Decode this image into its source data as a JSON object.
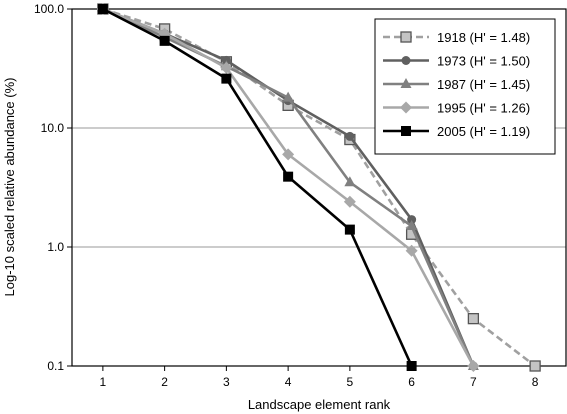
{
  "chart_data": {
    "type": "line",
    "title": "",
    "xlabel": "Landscape element rank",
    "ylabel": "Log-10 scaled relative abundance (%)",
    "yscale": "log",
    "ylim": [
      0.1,
      100
    ],
    "xlim": [
      0.5,
      8.5
    ],
    "grid": "horizontal",
    "legend_position": "top-right",
    "x_ticks": [
      "1",
      "2",
      "3",
      "4",
      "5",
      "6",
      "7",
      "8"
    ],
    "y_ticks": [
      "0.1",
      "1.0",
      "10.0",
      "100.0"
    ],
    "series": [
      {
        "name": "1918 (H' = 1.48)",
        "color": "#a0a0a0",
        "dashed": true,
        "marker": "square-outlined",
        "x": [
          1,
          2,
          3,
          4,
          5,
          6,
          7,
          8
        ],
        "values": [
          100,
          68,
          36,
          15.5,
          8.0,
          1.28,
          0.25,
          0.1
        ]
      },
      {
        "name": "1973 (H' = 1.50)",
        "color": "#606060",
        "dashed": false,
        "marker": "circle",
        "x": [
          1,
          2,
          3,
          4,
          5,
          6,
          7
        ],
        "values": [
          100,
          62,
          37,
          17,
          8.5,
          1.7,
          0.1
        ]
      },
      {
        "name": "1987 (H' = 1.45)",
        "color": "#808080",
        "dashed": false,
        "marker": "triangle",
        "x": [
          1,
          2,
          3,
          4,
          5,
          6,
          7
        ],
        "values": [
          100,
          58,
          33,
          18,
          3.5,
          1.5,
          0.1
        ]
      },
      {
        "name": "1995 (H' = 1.26)",
        "color": "#a8a8a8",
        "dashed": false,
        "marker": "diamond",
        "x": [
          1,
          2,
          3,
          4,
          5,
          6,
          7
        ],
        "values": [
          100,
          62,
          32,
          6.0,
          2.4,
          0.93,
          0.1
        ]
      },
      {
        "name": "2005 (H' = 1.19)",
        "color": "#000000",
        "dashed": false,
        "marker": "square",
        "x": [
          1,
          2,
          3,
          4,
          5,
          6
        ],
        "values": [
          100,
          54,
          26,
          3.9,
          1.4,
          0.1
        ]
      }
    ]
  }
}
